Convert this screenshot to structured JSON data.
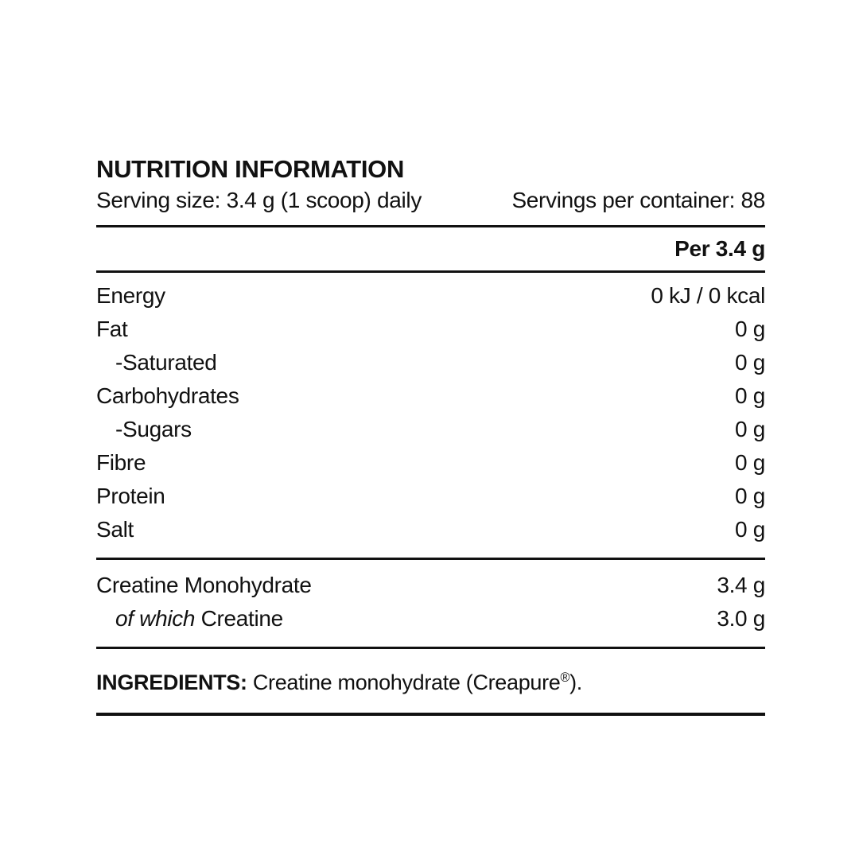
{
  "label": {
    "title": "NUTRITION INFORMATION",
    "serving_size": "Serving size: 3.4 g (1 scoop) daily",
    "servings_per_container": "Servings per container: 88",
    "column_header": "Per 3.4 g",
    "rows": [
      {
        "name": "Energy",
        "value": "0 kJ / 0 kcal"
      },
      {
        "name": "Fat",
        "value": "0 g"
      },
      {
        "name": "-Saturated",
        "value": "0 g"
      },
      {
        "name": "Carbohydrates",
        "value": "0 g"
      },
      {
        "name": "-Sugars",
        "value": "0 g"
      },
      {
        "name": "Fibre",
        "value": "0 g"
      },
      {
        "name": "Protein",
        "value": "0 g"
      },
      {
        "name": "Salt",
        "value": "0 g"
      }
    ],
    "actives": {
      "creatine_monohydrate_label": "Creatine Monohydrate",
      "creatine_monohydrate_value": "3.4 g",
      "of_which_italic": "of which",
      "of_which_rest": " Creatine",
      "of_which_value": "3.0 g"
    },
    "ingredients": {
      "heading": "INGREDIENTS:",
      "text_before_reg": " Creatine monohydrate (Creapure",
      "reg_mark": "®",
      "text_after_reg": ")."
    },
    "colors": {
      "text": "#111111",
      "background": "#ffffff",
      "rule": "#111111"
    }
  }
}
